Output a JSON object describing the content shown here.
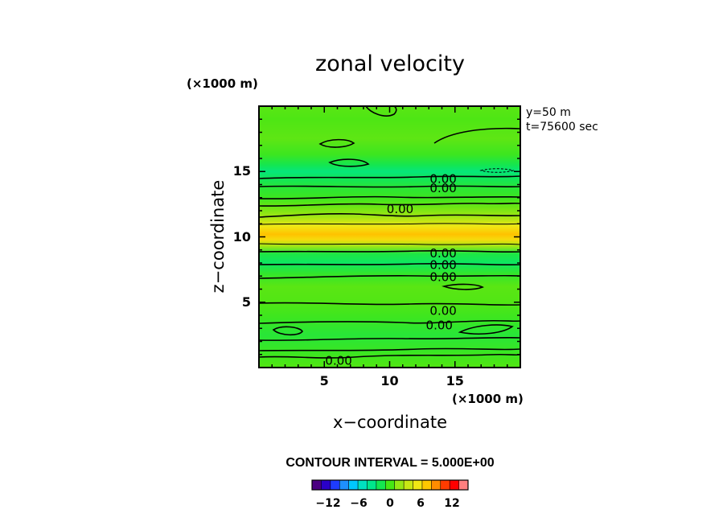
{
  "chart_data": {
    "type": "heatmap",
    "title": "zonal velocity",
    "xlabel": "x−coordinate",
    "ylabel": "z−coordinate",
    "x_unit": "(×1000 m)",
    "y_unit": "(×1000 m)",
    "xlim": [
      0,
      20
    ],
    "ylim": [
      0,
      20
    ],
    "x_ticks": [
      "5",
      "10",
      "15"
    ],
    "y_ticks": [
      "5",
      "10",
      "15"
    ],
    "info": [
      "y=50  m",
      "t=75600  sec"
    ],
    "contour_interval": "CONTOUR INTERVAL = 5.000E+00",
    "colorbar": {
      "labels": [
        "−12",
        "−6",
        "0",
        "6",
        "12"
      ],
      "colors": [
        "#4b0082",
        "#2a00c8",
        "#1e3cff",
        "#1e90ff",
        "#00c8ff",
        "#00e0c0",
        "#00e68c",
        "#14e650",
        "#46e614",
        "#96e614",
        "#c8e614",
        "#f0e614",
        "#ffc800",
        "#ff8c00",
        "#ff3c00",
        "#ff0000",
        "#ff7f7f"
      ]
    },
    "contour_labels": [
      {
        "text": "0.00",
        "x": 14.1,
        "z": 14.5
      },
      {
        "text": "0.00",
        "x": 14.1,
        "z": 13.8
      },
      {
        "text": "0.00",
        "x": 10.8,
        "z": 12.2
      },
      {
        "text": "0.00",
        "x": 14.1,
        "z": 8.8
      },
      {
        "text": "0.00",
        "x": 14.1,
        "z": 7.9
      },
      {
        "text": "0.00",
        "x": 14.1,
        "z": 7.0
      },
      {
        "text": "0.00",
        "x": 14.1,
        "z": 4.4
      },
      {
        "text": "0.00",
        "x": 13.8,
        "z": 3.3
      },
      {
        "text": "0.00",
        "x": 6.1,
        "z": 0.6
      }
    ],
    "bands": [
      {
        "z": 0.2,
        "value": 0.2
      },
      {
        "z": 1.2,
        "value": -0.5
      },
      {
        "z": 2.5,
        "value": -1.2
      },
      {
        "z": 3.8,
        "value": -0.4
      },
      {
        "z": 5.0,
        "value": 0.3
      },
      {
        "z": 6.2,
        "value": 0.5
      },
      {
        "z": 7.2,
        "value": -0.8
      },
      {
        "z": 8.0,
        "value": -2.6
      },
      {
        "z": 8.7,
        "value": -1.6
      },
      {
        "z": 9.3,
        "value": 2.5
      },
      {
        "z": 9.8,
        "value": 6.8
      },
      {
        "z": 10.2,
        "value": 8.2
      },
      {
        "z": 10.8,
        "value": 6.0
      },
      {
        "z": 11.5,
        "value": 2.6
      },
      {
        "z": 12.3,
        "value": 0.9
      },
      {
        "z": 13.0,
        "value": -0.4
      },
      {
        "z": 13.8,
        "value": -1.2
      },
      {
        "z": 14.5,
        "value": -2.4
      },
      {
        "z": 15.0,
        "value": -3.4
      },
      {
        "z": 15.5,
        "value": -2.0
      },
      {
        "z": 16.3,
        "value": -0.4
      },
      {
        "z": 17.5,
        "value": 0.6
      },
      {
        "z": 19.0,
        "value": 0.2
      },
      {
        "z": 20.0,
        "value": 0.5
      }
    ]
  }
}
